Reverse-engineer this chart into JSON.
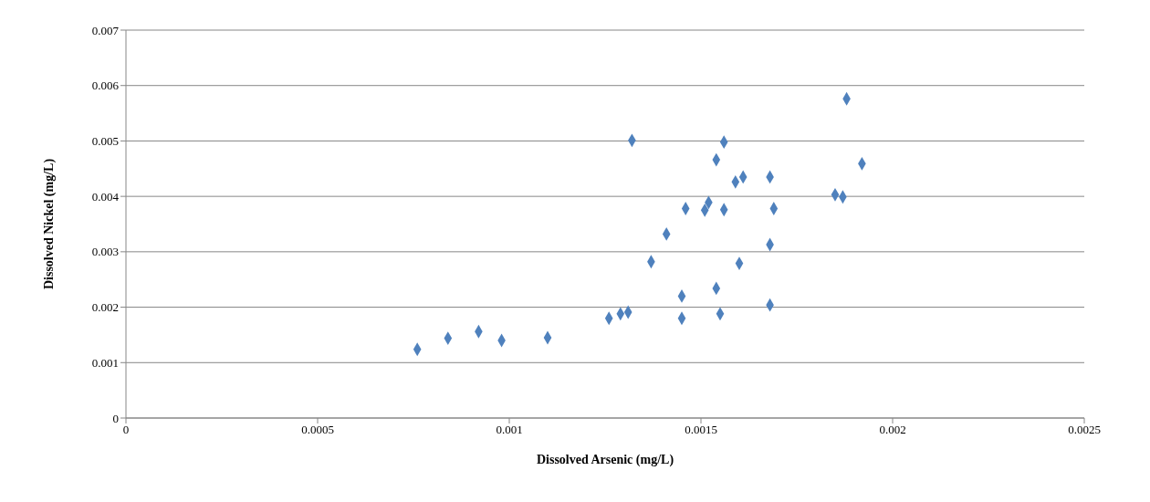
{
  "chart_data": {
    "type": "scatter",
    "xlabel": "Dissolved Arsenic (mg/L)",
    "ylabel": "Dissolved Nickel (mg/L)",
    "x": [
      0.00076,
      0.00084,
      0.00092,
      0.00098,
      0.0011,
      0.00126,
      0.00129,
      0.00131,
      0.00132,
      0.00137,
      0.00141,
      0.00145,
      0.00145,
      0.00146,
      0.00151,
      0.00152,
      0.00154,
      0.00154,
      0.00155,
      0.00156,
      0.00156,
      0.00159,
      0.0016,
      0.00161,
      0.00168,
      0.00168,
      0.00168,
      0.00169,
      0.00185,
      0.00187,
      0.00188,
      0.00192
    ],
    "series": [
      {
        "color": "#4f81bd",
        "values": [
          0.00124,
          0.00144,
          0.00156,
          0.0014,
          0.00145,
          0.0018,
          0.00188,
          0.00191,
          0.00501,
          0.00282,
          0.00332,
          0.0022,
          0.0018,
          0.00378,
          0.00375,
          0.00389,
          0.00234,
          0.00466,
          0.00188,
          0.00498,
          0.00376,
          0.00426,
          0.00279,
          0.00435,
          0.00435,
          0.00313,
          0.00204,
          0.00378,
          0.00403,
          0.00399,
          0.00576,
          0.00459
        ]
      }
    ],
    "xlim": [
      0,
      0.0025
    ],
    "xticks": [
      0,
      0.0005,
      0.001,
      0.0015,
      0.002,
      0.0025
    ],
    "ylim": [
      0,
      0.007
    ],
    "yticks": [
      0,
      0.001,
      0.002,
      0.003,
      0.004,
      0.005,
      0.006,
      0.007
    ],
    "grid": "y",
    "legend": false,
    "marker": "diamond"
  }
}
